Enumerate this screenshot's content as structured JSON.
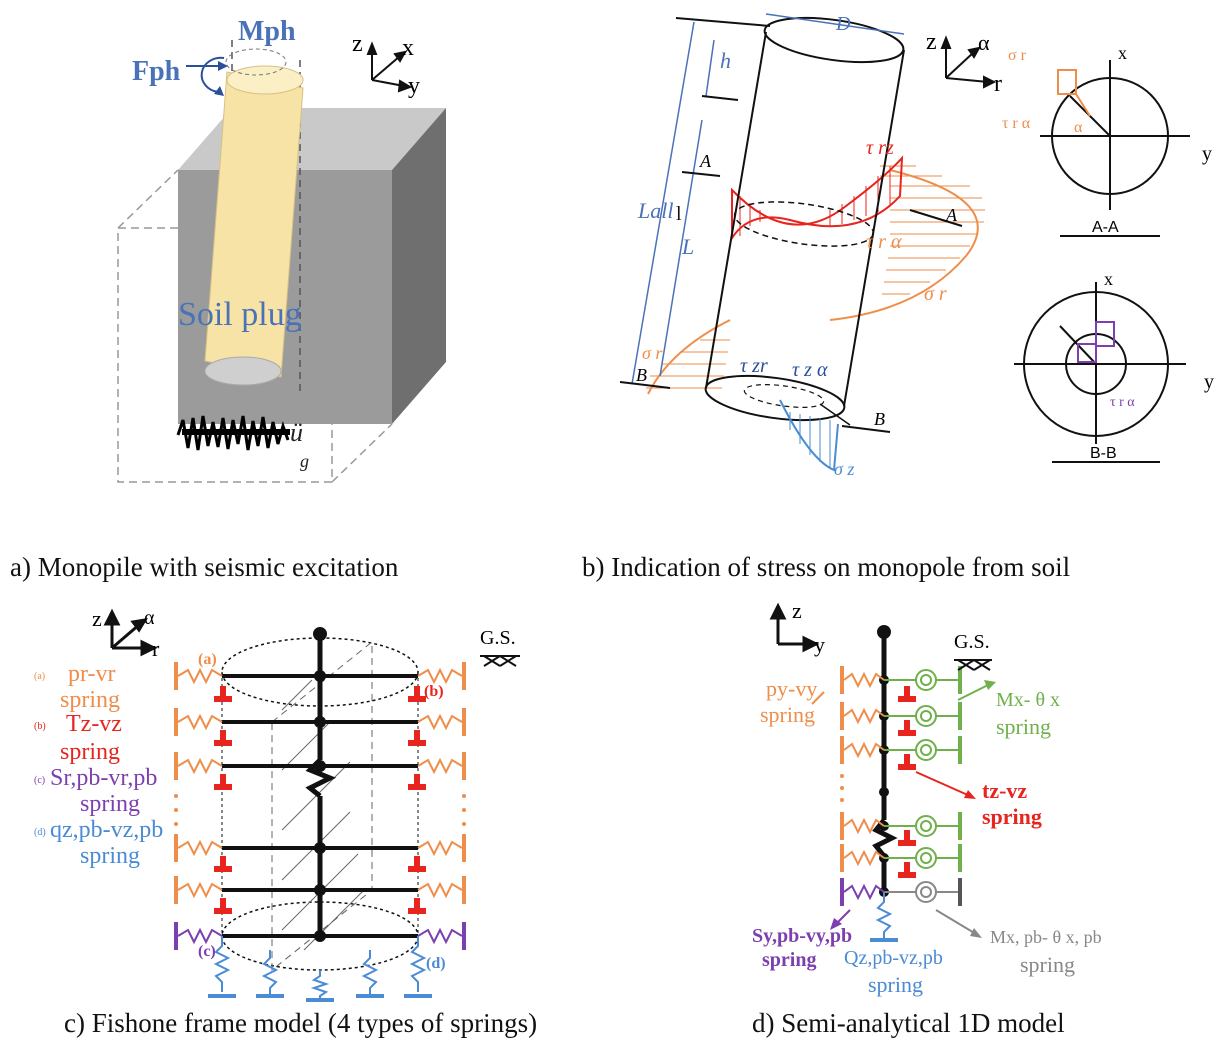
{
  "panel_a": {
    "caption": "a) Monopile with seismic excitation",
    "moment_label": "Mph",
    "force_label": "Fph",
    "soil_label": "Soil plug",
    "accel_label": "ü",
    "accel_sub": "g",
    "axes": {
      "z": "z",
      "x": "x",
      "y": "y"
    }
  },
  "panel_b": {
    "caption": "b) Indication of stress on monopole from soil",
    "dim_D": "D",
    "dim_h": "h",
    "dim_Lall": "Lall",
    "dim_l": "l",
    "dim_L": "L",
    "sec_A": "A",
    "sec_B": "B",
    "tau_rz": "τ rz",
    "tau_ra": "τ r α",
    "sigma_r": "σ r",
    "tau_zr": "τ zr",
    "tau_za": "τ z α",
    "sigma_z": "σ z",
    "axes": {
      "z": "z",
      "a": "α",
      "r": "r"
    },
    "sec_AA": "A-A",
    "sec_BB": "B-B",
    "sec_x": "x",
    "sec_y": "y",
    "sec_sigma": "σ r",
    "sec_tau": "τ r α",
    "sec_alpha": "α"
  },
  "panel_c": {
    "caption": "c) Fishone frame model (4 types of springs)",
    "axes": {
      "z": "z",
      "a": "α",
      "r": "r"
    },
    "gs": "G.S.",
    "tag_a": "(a)",
    "tag_b": "(b)",
    "tag_c": "(c)",
    "tag_d": "(d)",
    "legend": [
      {
        "tag": "(a)",
        "name": "pr-vr",
        "word": "spring",
        "color": "#ee8e4a"
      },
      {
        "tag": "(b)",
        "name": "Tz-vz",
        "word": "spring",
        "color": "#e8241e"
      },
      {
        "tag": "(c)",
        "name": "Sr,pb-vr,pb",
        "word": "spring",
        "color": "#7d3fb0"
      },
      {
        "tag": "(d)",
        "name": "qz,pb-vz,pb",
        "word": "spring",
        "color": "#4a8bd4"
      }
    ]
  },
  "panel_d": {
    "caption": "d) Semi-analytical 1D model",
    "axes": {
      "z": "z",
      "y": "y"
    },
    "gs": "G.S.",
    "py": "py-vy",
    "py_word": "spring",
    "mx": "Mx- θ x",
    "mx_word": "spring",
    "tz": "tz-vz",
    "tz_word": "spring",
    "sy": "Sy,pb-vy,pb",
    "sy_word": "spring",
    "qz": "Qz,pb-vz,pb",
    "qz_word": "spring",
    "mxpb": "Mx, pb- θ x, pb",
    "mxpb_word": "spring"
  }
}
